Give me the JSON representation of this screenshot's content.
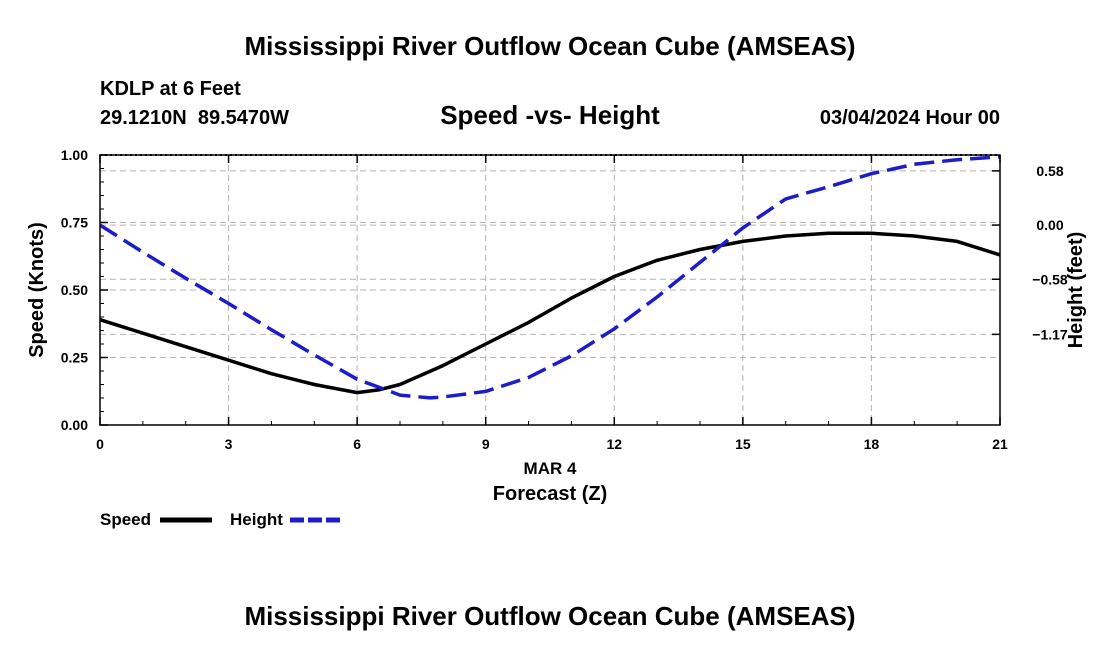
{
  "title": "Mississippi River Outflow Ocean Cube (AMSEAS)",
  "station": "KDLP at 6 Feet",
  "coords": "29.1210N  89.5470W",
  "plot_title": "Speed -vs- Height",
  "datetime": "03/04/2024 Hour 00",
  "date_label": "MAR 4",
  "footer_title": "Mississippi River Outflow Ocean Cube (AMSEAS)",
  "colors": {
    "speed": "#000000",
    "height": "#1c1cc8",
    "grid": "#b4b4b4"
  },
  "chart_data": {
    "type": "line",
    "title": "Speed -vs- Height",
    "xlabel": "Forecast (Z)",
    "ylabel": "Speed (Knots)",
    "y2label": "Height (feet)",
    "xlim": [
      0,
      21
    ],
    "ylim": [
      0,
      1
    ],
    "y2lim": [
      -2.14,
      0.75
    ],
    "x_ticks": [
      "0",
      "3",
      "6",
      "9",
      "12",
      "15",
      "18",
      "21"
    ],
    "y_ticks": [
      "0.00",
      "0.25",
      "0.50",
      "0.75",
      "1.00"
    ],
    "y2_ticks": [
      "0.58",
      "0.00",
      "−0.58",
      "−1.17"
    ],
    "y2_tick_values": [
      0.58,
      0.0,
      -0.58,
      -1.17
    ],
    "legend": [
      "Speed",
      "Height"
    ],
    "series": [
      {
        "name": "Speed",
        "axis": "left",
        "x": [
          0,
          1,
          2,
          3,
          4,
          5,
          6,
          6.5,
          7,
          8,
          9,
          10,
          11,
          12,
          13,
          14,
          15,
          16,
          17,
          17.5,
          18,
          19,
          20,
          21
        ],
        "values": [
          0.39,
          0.34,
          0.29,
          0.24,
          0.19,
          0.15,
          0.12,
          0.13,
          0.15,
          0.22,
          0.3,
          0.38,
          0.47,
          0.55,
          0.61,
          0.65,
          0.68,
          0.7,
          0.71,
          0.71,
          0.71,
          0.7,
          0.68,
          0.63
        ]
      },
      {
        "name": "Height",
        "axis": "right",
        "x": [
          0,
          1,
          2,
          3,
          4,
          5,
          6,
          7,
          7.7,
          8,
          9,
          10,
          11,
          12,
          13,
          14,
          15,
          16,
          17,
          18,
          19,
          20,
          21
        ],
        "values": [
          0.0,
          -0.29,
          -0.57,
          -0.84,
          -1.12,
          -1.39,
          -1.65,
          -1.82,
          -1.85,
          -1.84,
          -1.78,
          -1.63,
          -1.4,
          -1.11,
          -0.77,
          -0.4,
          -0.03,
          0.28,
          0.41,
          0.55,
          0.65,
          0.7,
          0.73
        ]
      }
    ]
  }
}
